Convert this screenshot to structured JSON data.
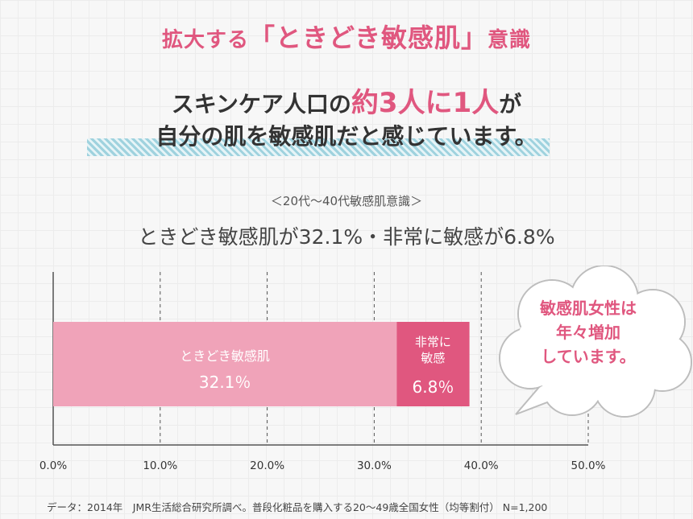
{
  "header": {
    "title_pre": "拡大する",
    "title_emph": "「ときどき敏感肌」",
    "title_post": "意識"
  },
  "headline": {
    "line1_pre": "スキンケア人口の",
    "line1_emph": "約3人に1人",
    "line1_post": "が",
    "line2": "自分の肌を敏感肌だと感じています。"
  },
  "subheading": "＜20代〜40代敏感肌意識＞",
  "summary": "ときどき敏感肌が32.1%・非常に敏感が6.8%",
  "callout": {
    "line1": "敏感肌女性は",
    "line2": "年々増加",
    "line3": "しています。"
  },
  "footnote": "データ：2014年　JMR生活総合研究所調べ。普段化粧品を購入する20〜49歳全国女性（均等割付） N=1,200",
  "chart_data": {
    "type": "bar",
    "orientation": "horizontal",
    "stacked": true,
    "xlim": [
      0,
      50
    ],
    "xticks": [
      "0.0%",
      "10.0%",
      "20.0%",
      "30.0%",
      "40.0%",
      "50.0%"
    ],
    "grid": true,
    "series": [
      {
        "name": "ときどき敏感肌",
        "value": 32.1,
        "value_label": "32.1％",
        "color": "#f0a3b9"
      },
      {
        "name": "非常に敏感",
        "value": 6.8,
        "value_label": "6.8％",
        "color": "#e0577f"
      }
    ]
  }
}
